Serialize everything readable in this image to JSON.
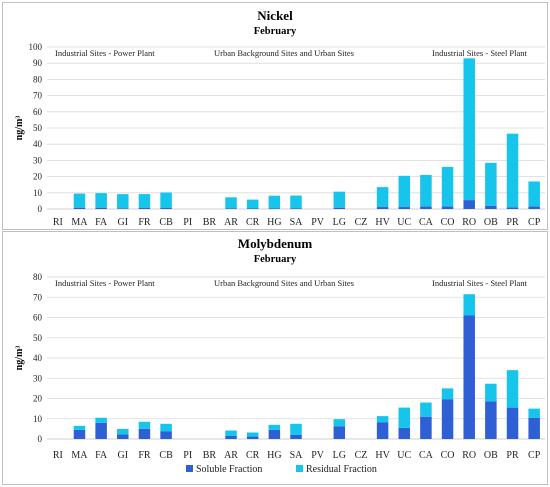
{
  "colors": {
    "soluble": "#2f5fd4",
    "residual": "#17c4ea",
    "grid": "#d9d9d9",
    "frame": "#bfbfbf"
  },
  "legend": {
    "soluble": "Soluble Fraction",
    "residual": "Residual Fraction",
    "placement": "bottom"
  },
  "chart_data": [
    {
      "type": "bar",
      "stacked": true,
      "title": "Nickel",
      "subtitle": "February",
      "ylabel": "ng/m³",
      "ylim": [
        0,
        100
      ],
      "yticks": [
        0,
        10,
        20,
        30,
        40,
        50,
        60,
        70,
        80,
        90,
        100
      ],
      "grid": true,
      "region_labels": [
        "Industrial Sites - Power Plant",
        "Urban Background Sites and Urban Sites",
        "Industrial Sites - Steel Plant"
      ],
      "categories": [
        "RI",
        "MA",
        "FA",
        "GI",
        "FR",
        "CB",
        "PI",
        "BR",
        "AR",
        "CR",
        "HG",
        "SA",
        "PV",
        "LG",
        "CZ",
        "HV",
        "UC",
        "CA",
        "CO",
        "RO",
        "OB",
        "PR",
        "CP"
      ],
      "series": [
        {
          "name": "Soluble Fraction",
          "values": [
            0,
            0.8,
            0.8,
            0.4,
            0.6,
            0.6,
            0,
            0,
            0.3,
            0.3,
            0.3,
            0.3,
            0,
            0.8,
            0,
            1.2,
            1.2,
            1.5,
            1.5,
            5.5,
            2.0,
            1.0,
            1.5
          ]
        },
        {
          "name": "Residual Fraction",
          "values": [
            0,
            8.7,
            9.0,
            8.8,
            8.6,
            9.6,
            0,
            0,
            6.9,
            5.5,
            7.9,
            8.0,
            0,
            9.9,
            0,
            12.3,
            19.3,
            19.5,
            24.5,
            87.5,
            26.5,
            45.5,
            15.5
          ]
        }
      ]
    },
    {
      "type": "bar",
      "stacked": true,
      "title": "Molybdenum",
      "subtitle": "February",
      "ylabel": "ng/m³",
      "ylim": [
        0,
        80
      ],
      "yticks": [
        0,
        10,
        20,
        30,
        40,
        50,
        60,
        70,
        80
      ],
      "grid": true,
      "region_labels": [
        "Industrial Sites - Power Plant",
        "Urban Background Sites and Urban Sites",
        "Industrial Sites - Steel Plant"
      ],
      "categories": [
        "RI",
        "MA",
        "FA",
        "GI",
        "FR",
        "CB",
        "PI",
        "BR",
        "AR",
        "CR",
        "HG",
        "SA",
        "PV",
        "LG",
        "CZ",
        "HV",
        "UC",
        "CA",
        "CO",
        "RO",
        "OB",
        "PR",
        "CP"
      ],
      "series": [
        {
          "name": "Soluble Fraction",
          "values": [
            0,
            4.5,
            8.0,
            2.3,
            5.0,
            3.7,
            0,
            0,
            1.5,
            1.2,
            4.5,
            2.0,
            0,
            6.3,
            0,
            8.3,
            5.5,
            11.0,
            19.5,
            61.0,
            18.5,
            15.5,
            10.5
          ]
        },
        {
          "name": "Residual Fraction",
          "values": [
            0,
            2.0,
            2.5,
            2.7,
            3.5,
            3.8,
            0,
            0,
            2.7,
            2.0,
            2.5,
            5.5,
            0,
            3.5,
            0,
            3.0,
            10.0,
            7.0,
            5.5,
            10.5,
            8.8,
            18.5,
            4.5
          ]
        }
      ]
    }
  ]
}
